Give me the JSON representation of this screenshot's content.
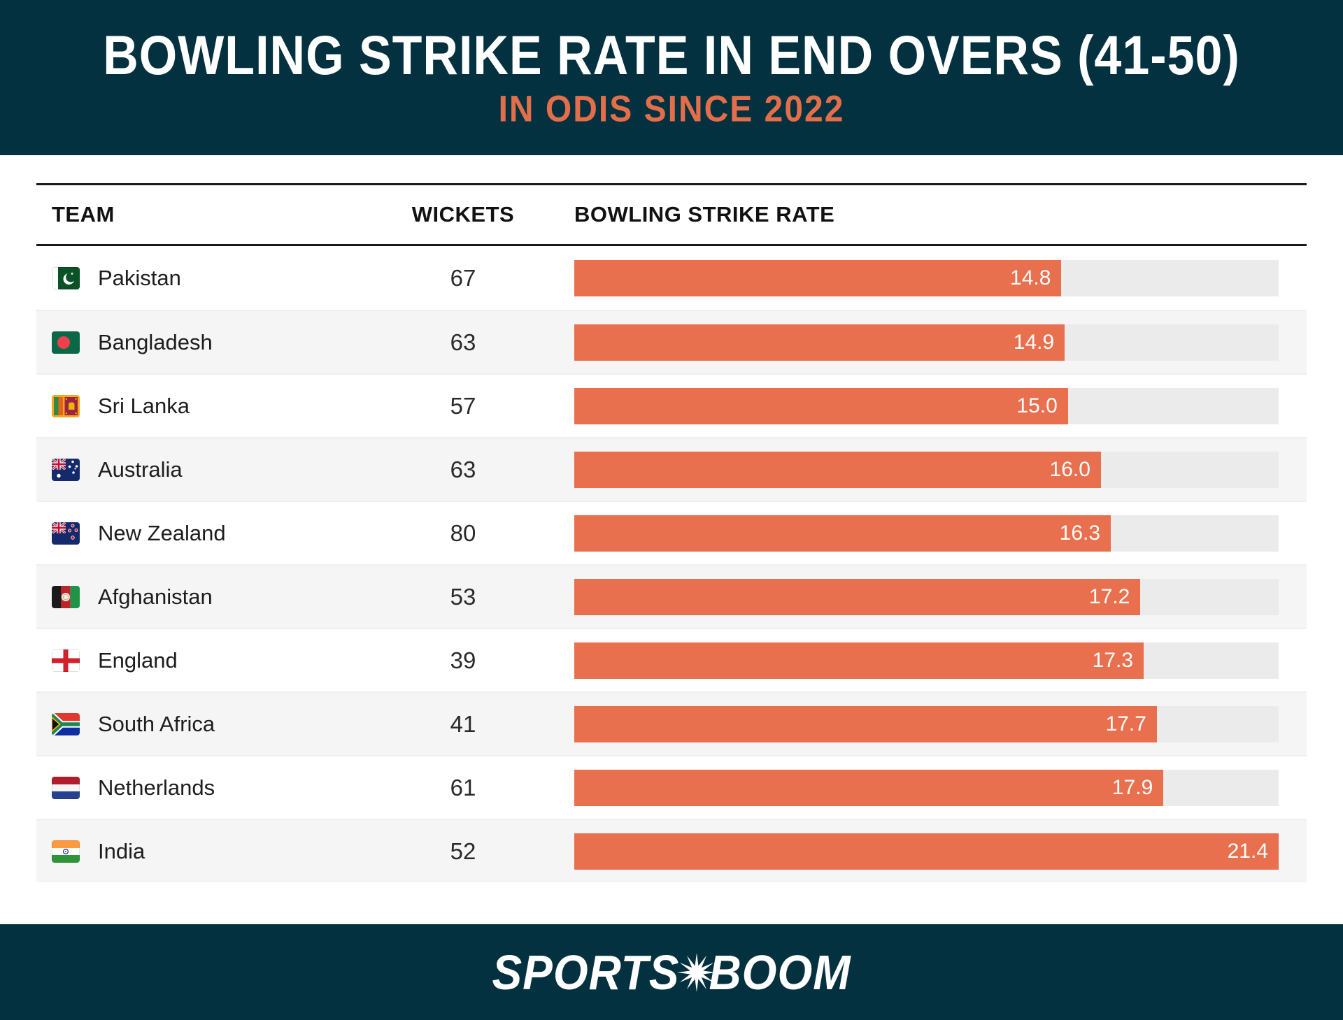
{
  "header": {
    "title": "BOWLING STRIKE RATE IN END OVERS (41-50)",
    "subtitle": "IN ODIS SINCE 2022"
  },
  "table": {
    "columns": [
      "TEAM",
      "WICKETS",
      "BOWLING STRIKE RATE"
    ]
  },
  "rows": [
    {
      "team": "Pakistan",
      "wickets": 67,
      "strike_rate": 14.8,
      "strike_rate_label": "14.8",
      "flag": "pakistan-flag-icon"
    },
    {
      "team": "Bangladesh",
      "wickets": 63,
      "strike_rate": 14.9,
      "strike_rate_label": "14.9",
      "flag": "bangladesh-flag-icon"
    },
    {
      "team": "Sri Lanka",
      "wickets": 57,
      "strike_rate": 15.0,
      "strike_rate_label": "15.0",
      "flag": "sri-lanka-flag-icon"
    },
    {
      "team": "Australia",
      "wickets": 63,
      "strike_rate": 16.0,
      "strike_rate_label": "16.0",
      "flag": "australia-flag-icon"
    },
    {
      "team": "New Zealand",
      "wickets": 80,
      "strike_rate": 16.3,
      "strike_rate_label": "16.3",
      "flag": "new-zealand-flag-icon"
    },
    {
      "team": "Afghanistan",
      "wickets": 53,
      "strike_rate": 17.2,
      "strike_rate_label": "17.2",
      "flag": "afghanistan-flag-icon"
    },
    {
      "team": "England",
      "wickets": 39,
      "strike_rate": 17.3,
      "strike_rate_label": "17.3",
      "flag": "england-flag-icon"
    },
    {
      "team": "South Africa",
      "wickets": 41,
      "strike_rate": 17.7,
      "strike_rate_label": "17.7",
      "flag": "south-africa-flag-icon"
    },
    {
      "team": "Netherlands",
      "wickets": 61,
      "strike_rate": 17.9,
      "strike_rate_label": "17.9",
      "flag": "netherlands-flag-icon"
    },
    {
      "team": "India",
      "wickets": 52,
      "strike_rate": 21.4,
      "strike_rate_label": "21.4",
      "flag": "india-flag-icon"
    }
  ],
  "chart_data": {
    "type": "bar",
    "orientation": "horizontal",
    "title": "BOWLING STRIKE RATE IN END OVERS (41-50)",
    "subtitle": "IN ODIS SINCE 2022",
    "categories": [
      "Pakistan",
      "Bangladesh",
      "Sri Lanka",
      "Australia",
      "New Zealand",
      "Afghanistan",
      "England",
      "South Africa",
      "Netherlands",
      "India"
    ],
    "series": [
      {
        "name": "Wickets",
        "values": [
          67,
          63,
          57,
          63,
          80,
          53,
          39,
          41,
          61,
          52
        ]
      },
      {
        "name": "Bowling Strike Rate",
        "values": [
          14.8,
          14.9,
          15.0,
          16.0,
          16.3,
          17.2,
          17.3,
          17.7,
          17.9,
          21.4
        ]
      }
    ],
    "xlim": [
      0,
      21.4
    ],
    "value_labels": true,
    "grid": false,
    "legend": false,
    "bar_color": "#e8704e",
    "track_color": "#ebebeb"
  },
  "footer": {
    "logo": "SPORTSBOOM",
    "logo_left": "SPORTS",
    "logo_right": "BOOM"
  },
  "colors": {
    "teal": "#04313f",
    "accent_orange": "#e8704e",
    "subtitle_orange": "#e26e4a",
    "track_gray": "#ebebeb",
    "row_alt_gray": "#f5f5f6",
    "border_dark": "#191919",
    "text_dark": "#1d1d1d"
  }
}
